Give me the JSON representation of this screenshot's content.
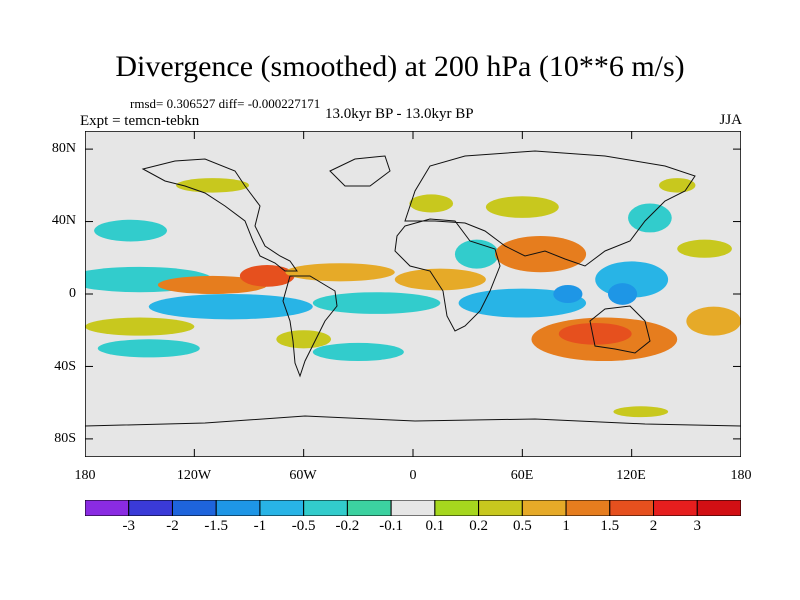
{
  "header": {
    "title": "Divergence (smoothed) at 200 hPa (10**6 m/s)",
    "stats": "rmsd= 0.306527 diff= -0.000227171",
    "experiment": "Expt = temcn-tebkn",
    "period": "13.0kyr BP - 13.0kyr BP",
    "season": "JJA"
  },
  "axes": {
    "lat_labels": [
      "80N",
      "40N",
      "0",
      "40S",
      "80S"
    ],
    "lon_labels": [
      "180",
      "120W",
      "60W",
      "0",
      "60E",
      "120E",
      "180"
    ]
  },
  "colorbar": {
    "labels": [
      "-3",
      "-2",
      "-1.5",
      "-1",
      "-0.5",
      "-0.2",
      "-0.1",
      "0.1",
      "0.2",
      "0.5",
      "1",
      "1.5",
      "2",
      "3"
    ],
    "colors": [
      "#8a2be2",
      "#3a3ad8",
      "#1e64dc",
      "#1e96e6",
      "#28b4e6",
      "#32cccc",
      "#3cd2a0",
      "#e6e6e6",
      "#a6d71e",
      "#c8c81e",
      "#e6aa28",
      "#e67d1e",
      "#e6501e",
      "#e61e1e",
      "#d20f14"
    ]
  },
  "map_data": {
    "type": "filled-contour-map",
    "lon_range": [
      -180,
      180
    ],
    "lat_range": [
      -90,
      90
    ],
    "blobs": [
      {
        "lon": -150,
        "lat": 8,
        "rx": 40,
        "ry": 7,
        "level": 5
      },
      {
        "lon": -100,
        "lat": -7,
        "rx": 45,
        "ry": 7,
        "level": 4
      },
      {
        "lon": -20,
        "lat": -5,
        "rx": 35,
        "ry": 6,
        "level": 5
      },
      {
        "lon": 60,
        "lat": -5,
        "rx": 35,
        "ry": 8,
        "level": 4
      },
      {
        "lon": 85,
        "lat": 0,
        "rx": 8,
        "ry": 5,
        "level": 3
      },
      {
        "lon": 120,
        "lat": 8,
        "rx": 20,
        "ry": 10,
        "level": 4
      },
      {
        "lon": 115,
        "lat": 0,
        "rx": 8,
        "ry": 6,
        "level": 3
      },
      {
        "lon": -155,
        "lat": 35,
        "rx": 20,
        "ry": 6,
        "level": 5
      },
      {
        "lon": -145,
        "lat": -30,
        "rx": 28,
        "ry": 5,
        "level": 5
      },
      {
        "lon": -30,
        "lat": -32,
        "rx": 25,
        "ry": 5,
        "level": 5
      },
      {
        "lon": 35,
        "lat": 22,
        "rx": 12,
        "ry": 8,
        "level": 5
      },
      {
        "lon": 130,
        "lat": 42,
        "rx": 12,
        "ry": 8,
        "level": 5
      },
      {
        "lon": -110,
        "lat": 5,
        "rx": 30,
        "ry": 5,
        "level": 11
      },
      {
        "lon": -80,
        "lat": 10,
        "rx": 15,
        "ry": 6,
        "level": 12
      },
      {
        "lon": -40,
        "lat": 12,
        "rx": 30,
        "ry": 5,
        "level": 10
      },
      {
        "lon": 15,
        "lat": 8,
        "rx": 25,
        "ry": 6,
        "level": 10
      },
      {
        "lon": 70,
        "lat": 22,
        "rx": 25,
        "ry": 10,
        "level": 11
      },
      {
        "lon": 105,
        "lat": -25,
        "rx": 40,
        "ry": 12,
        "level": 11
      },
      {
        "lon": 100,
        "lat": -22,
        "rx": 20,
        "ry": 6,
        "level": 12
      },
      {
        "lon": -150,
        "lat": -18,
        "rx": 30,
        "ry": 5,
        "level": 9
      },
      {
        "lon": -60,
        "lat": -25,
        "rx": 15,
        "ry": 5,
        "level": 9
      },
      {
        "lon": 165,
        "lat": -15,
        "rx": 15,
        "ry": 8,
        "level": 10
      },
      {
        "lon": 10,
        "lat": 50,
        "rx": 12,
        "ry": 5,
        "level": 9
      },
      {
        "lon": 60,
        "lat": 48,
        "rx": 20,
        "ry": 6,
        "level": 9
      },
      {
        "lon": 145,
        "lat": 60,
        "rx": 10,
        "ry": 4,
        "level": 9
      },
      {
        "lon": -110,
        "lat": 60,
        "rx": 20,
        "ry": 4,
        "level": 9
      },
      {
        "lon": 160,
        "lat": 25,
        "rx": 15,
        "ry": 5,
        "level": 9
      },
      {
        "lon": 125,
        "lat": -65,
        "rx": 15,
        "ry": 3,
        "level": 9
      }
    ]
  }
}
